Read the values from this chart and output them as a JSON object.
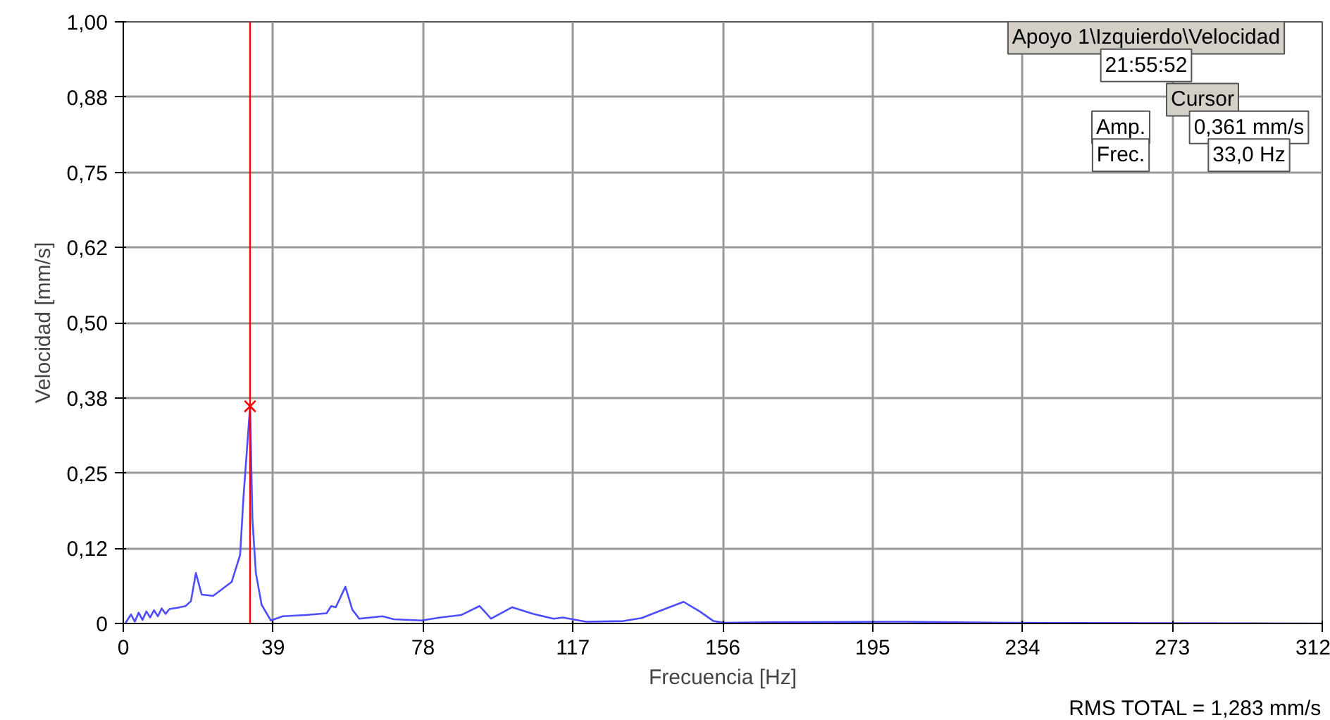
{
  "chart_data": {
    "type": "line",
    "xlabel": "Frecuencia [Hz]",
    "ylabel": "Velocidad [mm/s]",
    "xlim": [
      0,
      312
    ],
    "xticks": [
      0,
      39,
      78,
      117,
      156,
      195,
      234,
      273,
      312
    ],
    "ylim": [
      0,
      1
    ],
    "yticks": [
      0,
      {
        "value": 0.125,
        "label": "0,12"
      },
      {
        "value": 0.25,
        "label": "0,25"
      },
      {
        "value": 0.375,
        "label": "0,38"
      },
      {
        "value": 0.5,
        "label": "0,50"
      },
      {
        "value": 0.625,
        "label": "0,62"
      },
      {
        "value": 0.75,
        "label": "0,75"
      },
      {
        "value": 0.875,
        "label": "0,88"
      },
      {
        "value": 1,
        "label": "1,00"
      }
    ],
    "grid": true,
    "line_style": "solid",
    "series": [
      {
        "color": "#4d4dff",
        "x": [
          0.5,
          1,
          2,
          3,
          4,
          5,
          6,
          7,
          8,
          9,
          10,
          11,
          12,
          14,
          16.2,
          17.6,
          18.9,
          20.4,
          23.4,
          28.2,
          30.4,
          31.3,
          33,
          33.6,
          34.5,
          36,
          38.4,
          41.5,
          47.5,
          52.9,
          54.1,
          55.3,
          57.8,
          59.6,
          61.4,
          67.4,
          70.4,
          77.6,
          82.5,
          87.9,
          92.7,
          95.7,
          101.2,
          106.6,
          112,
          114.4,
          120.4,
          130.1,
          134.9,
          139.7,
          145.8,
          150,
          153.6,
          156.6,
          168.5,
          203,
          230,
          312
        ],
        "values": [
          0.0,
          0.005,
          0.015,
          0.003,
          0.018,
          0.006,
          0.02,
          0.01,
          0.022,
          0.012,
          0.025,
          0.016,
          0.024,
          0.026,
          0.029,
          0.037,
          0.084,
          0.048,
          0.046,
          0.069,
          0.114,
          0.212,
          0.361,
          0.174,
          0.084,
          0.031,
          0.005,
          0.012,
          0.014,
          0.017,
          0.029,
          0.027,
          0.061,
          0.023,
          0.008,
          0.012,
          0.007,
          0.005,
          0.01,
          0.014,
          0.029,
          0.008,
          0.027,
          0.016,
          0.008,
          0.01,
          0.003,
          0.004,
          0.009,
          0.021,
          0.036,
          0.02,
          0.004,
          0.001,
          0.002,
          0.003,
          0.001,
          0.0
        ]
      },
      {
        "type": "scatter",
        "marker": "cross",
        "color": "#ff0000",
        "x": [
          33
        ],
        "values": [
          0.361
        ]
      }
    ],
    "ref_lines": [
      {
        "axis": "x",
        "value": 33,
        "color": "#ff0000"
      }
    ],
    "annotations": [
      "Apoyo 1\\Izquierdo\\Velocidad",
      "21:55:52",
      "Cursor",
      "Amp.",
      "0,361 mm/s",
      "Frec.",
      "33,0 Hz",
      "RMS TOTAL = 1,283 mm/s"
    ]
  }
}
